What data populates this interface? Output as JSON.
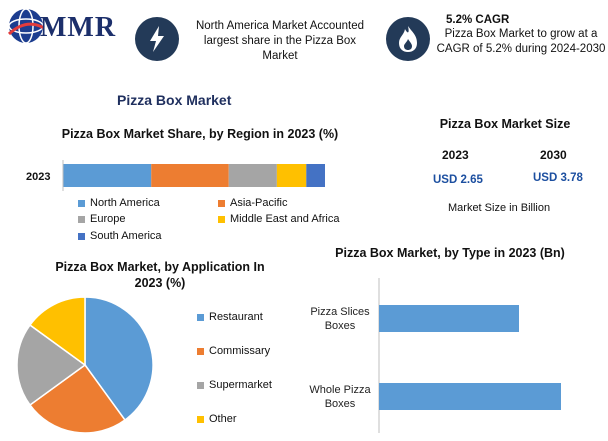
{
  "brand": {
    "logo_text": "MMR",
    "logo": "mmr-globe-logo"
  },
  "header": {
    "card1": {
      "icon": "lightning-icon",
      "text": "North America Market Accounted largest share in the Pizza Box Market"
    },
    "card2": {
      "icon": "flame-icon",
      "title": "5.2% CAGR",
      "text": "Pizza Box Market to grow at a CAGR of 5.2% during 2024-2030"
    }
  },
  "main_title": "Pizza Box Market",
  "market_size": {
    "title": "Pizza Box Market Size",
    "years": [
      "2023",
      "2030"
    ],
    "values": [
      "USD 2.65",
      "USD 3.78"
    ],
    "footnote": "Market Size in Billion"
  },
  "colors": {
    "north_america": "#5b9bd5",
    "asia_pacific": "#ed7d31",
    "europe": "#a5a5a5",
    "mea": "#ffc000",
    "south_america": "#4472c4",
    "header_icon_bg": "#233a58"
  },
  "chart_data": [
    {
      "type": "bar",
      "orientation": "horizontal-stacked",
      "title": "Pizza Box Market Share, by Region in 2023 (%)",
      "categories": [
        "2023"
      ],
      "series": [
        {
          "name": "North America",
          "values": [
            33
          ]
        },
        {
          "name": "Asia-Pacific",
          "values": [
            29
          ]
        },
        {
          "name": "Europe",
          "values": [
            18
          ]
        },
        {
          "name": "Middle East and Africa",
          "values": [
            11
          ]
        },
        {
          "name": "South America",
          "values": [
            7
          ]
        }
      ],
      "legend_position": "bottom",
      "grid": false
    },
    {
      "type": "pie",
      "title": "Pizza Box Market, by Application In 2023 (%)",
      "labels": [
        "Restaurant",
        "Commissary",
        "Supermarket",
        "Other"
      ],
      "values": [
        40,
        25,
        20,
        15
      ],
      "legend_position": "right"
    },
    {
      "type": "bar",
      "orientation": "horizontal",
      "title": "Pizza Box Market, by Type in 2023 (Bn)",
      "categories": [
        "Pizza Slices Boxes",
        "Whole Pizza Boxes"
      ],
      "values": [
        1.0,
        1.3
      ],
      "grid": false
    }
  ]
}
